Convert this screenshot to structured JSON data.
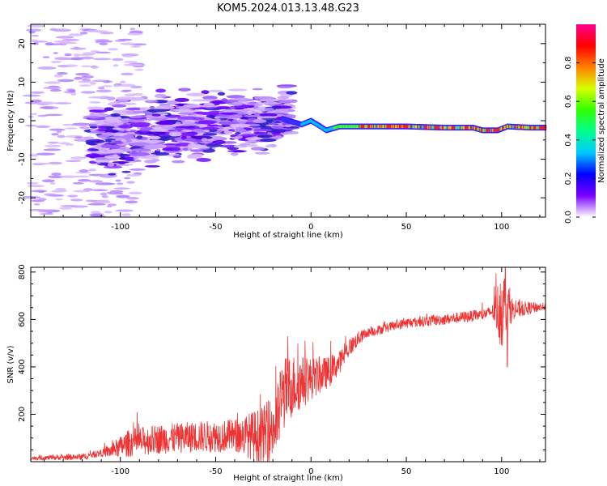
{
  "title": "KOM5.2024.013.13.48.G23",
  "chart_data": [
    {
      "type": "heatmap",
      "xlabel": "Height of straight line (km)",
      "ylabel": "Frequency (Hz)",
      "xlim": [
        -147,
        123
      ],
      "ylim": [
        -25,
        25
      ],
      "xticks": [
        -100,
        -50,
        0,
        50,
        100
      ],
      "yticks": [
        -20,
        -10,
        0,
        10,
        20
      ],
      "colorbar": {
        "label": "Normalized spectral amplitude",
        "range": [
          0,
          1
        ],
        "ticks": [
          "0.0",
          "0.2",
          "0.4",
          "0.6",
          "0.8"
        ],
        "colormap": [
          "#ffffff",
          "#7a00ff",
          "#0000ff",
          "#00c8ff",
          "#00ff90",
          "#30ff00",
          "#d8ff00",
          "#ff8000",
          "#ff0000",
          "#ff0090"
        ]
      },
      "features": {
        "scatter_region_x": [
          -147,
          -10
        ],
        "dense_cluster_x": [
          -115,
          -10
        ],
        "dense_cluster_freq": [
          -12,
          5
        ],
        "carrier_track": [
          {
            "x": -15,
            "y": 0.5
          },
          {
            "x": -5,
            "y": -1.0
          },
          {
            "x": 0,
            "y": 0.0
          },
          {
            "x": 5,
            "y": -1.5
          },
          {
            "x": 8,
            "y": -2.5
          },
          {
            "x": 15,
            "y": -1.5
          },
          {
            "x": 30,
            "y": -1.5
          },
          {
            "x": 50,
            "y": -1.5
          },
          {
            "x": 70,
            "y": -1.8
          },
          {
            "x": 85,
            "y": -1.8
          },
          {
            "x": 90,
            "y": -2.5
          },
          {
            "x": 98,
            "y": -2.5
          },
          {
            "x": 103,
            "y": -1.5
          },
          {
            "x": 115,
            "y": -1.8
          },
          {
            "x": 123,
            "y": -1.8
          }
        ]
      }
    },
    {
      "type": "line",
      "xlabel": "Height of straight line (km)",
      "ylabel": "SNR (v/v)",
      "xlim": [
        -147,
        123
      ],
      "ylim": [
        0,
        820
      ],
      "xticks": [
        -100,
        -50,
        0,
        50,
        100
      ],
      "yticks": [
        200,
        400,
        600,
        800
      ],
      "series": [
        {
          "color": "#ee3333",
          "trend": [
            {
              "x": -147,
              "y": 15
            },
            {
              "x": -120,
              "y": 20
            },
            {
              "x": -105,
              "y": 45
            },
            {
              "x": -95,
              "y": 80
            },
            {
              "x": -80,
              "y": 95
            },
            {
              "x": -60,
              "y": 105
            },
            {
              "x": -40,
              "y": 110
            },
            {
              "x": -25,
              "y": 110
            },
            {
              "x": -18,
              "y": 160
            },
            {
              "x": -15,
              "y": 280
            },
            {
              "x": -10,
              "y": 320
            },
            {
              "x": 0,
              "y": 350
            },
            {
              "x": 10,
              "y": 380
            },
            {
              "x": 15,
              "y": 420
            },
            {
              "x": 20,
              "y": 480
            },
            {
              "x": 25,
              "y": 520
            },
            {
              "x": 30,
              "y": 545
            },
            {
              "x": 40,
              "y": 565
            },
            {
              "x": 50,
              "y": 585
            },
            {
              "x": 70,
              "y": 600
            },
            {
              "x": 90,
              "y": 620
            },
            {
              "x": 98,
              "y": 640
            },
            {
              "x": 102,
              "y": 660
            },
            {
              "x": 106,
              "y": 640
            },
            {
              "x": 123,
              "y": 655
            }
          ],
          "noise_amplitude": [
            {
              "x": -147,
              "y": 8
            },
            {
              "x": -110,
              "y": 15
            },
            {
              "x": -95,
              "y": 60
            },
            {
              "x": -40,
              "y": 70
            },
            {
              "x": -15,
              "y": 160
            },
            {
              "x": 0,
              "y": 90
            },
            {
              "x": 15,
              "y": 50
            },
            {
              "x": 30,
              "y": 20
            },
            {
              "x": 95,
              "y": 25
            },
            {
              "x": 100,
              "y": 180
            },
            {
              "x": 106,
              "y": 40
            },
            {
              "x": 123,
              "y": 15
            }
          ],
          "peak": {
            "x": 102,
            "y": 820
          },
          "dip": {
            "x": 103,
            "y": 400
          }
        }
      ]
    }
  ]
}
